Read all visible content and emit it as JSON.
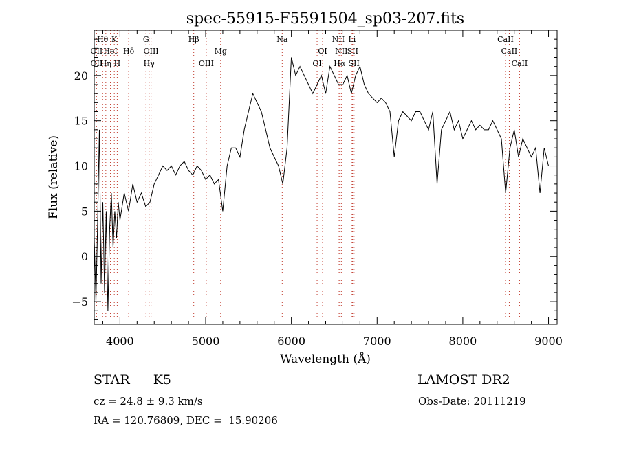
{
  "chart_data": {
    "type": "line",
    "title": "spec-55915-F5591504_sp03-207.fits",
    "xlabel": "Wavelength (Å)",
    "ylabel": "Flux (relative)",
    "xlim": [
      3700,
      9100
    ],
    "ylim": [
      -7.5,
      25
    ],
    "x_ticks": [
      4000,
      5000,
      6000,
      7000,
      8000,
      9000
    ],
    "y_ticks": [
      -5,
      0,
      5,
      10,
      15,
      20
    ],
    "grid": false,
    "series": [
      {
        "x": [
          3700,
          3720,
          3740,
          3760,
          3780,
          3800,
          3820,
          3840,
          3860,
          3880,
          3900,
          3920,
          3940,
          3960,
          3980,
          4000,
          4050,
          4100,
          4150,
          4200,
          4250,
          4300,
          4350,
          4400,
          4450,
          4500,
          4550,
          4600,
          4650,
          4700,
          4750,
          4800,
          4850,
          4900,
          4950,
          5000,
          5050,
          5100,
          5150,
          5200,
          5250,
          5300,
          5350,
          5400,
          5450,
          5500,
          5550,
          5600,
          5650,
          5700,
          5750,
          5800,
          5850,
          5900,
          5950,
          6000,
          6050,
          6100,
          6150,
          6200,
          6250,
          6300,
          6350,
          6400,
          6450,
          6500,
          6550,
          6600,
          6650,
          6700,
          6750,
          6800,
          6850,
          6900,
          6950,
          7000,
          7050,
          7100,
          7150,
          7200,
          7250,
          7300,
          7350,
          7400,
          7450,
          7500,
          7550,
          7600,
          7650,
          7700,
          7750,
          7800,
          7850,
          7900,
          7950,
          8000,
          8050,
          8100,
          8150,
          8200,
          8250,
          8300,
          8350,
          8400,
          8450,
          8500,
          8550,
          8600,
          8650,
          8700,
          8750,
          8800,
          8850,
          8900,
          8950,
          9000
        ],
        "y": [
          2,
          -5,
          4,
          14,
          -3,
          6,
          -4,
          5,
          -6,
          3,
          7,
          1,
          5,
          2,
          6,
          4,
          7,
          5,
          8,
          6,
          7,
          5.5,
          6,
          8,
          9,
          10,
          9.5,
          10,
          9,
          10,
          10.5,
          9.5,
          9,
          10,
          9.5,
          8.5,
          9,
          8,
          8.5,
          5,
          10,
          12,
          12,
          11,
          14,
          16,
          18,
          17,
          16,
          14,
          12,
          11,
          10,
          8,
          12,
          22,
          20,
          21,
          20,
          19,
          18,
          19,
          20,
          18,
          21,
          20,
          19,
          19,
          20,
          18,
          20,
          21,
          19,
          18,
          17.5,
          17,
          17.5,
          17,
          16,
          11,
          15,
          16,
          15.5,
          15,
          16,
          16,
          15,
          14,
          16,
          8,
          14,
          15,
          16,
          14,
          15,
          13,
          14,
          15,
          14,
          14.5,
          14,
          14,
          15,
          14,
          13,
          7,
          12,
          14,
          11,
          13,
          12,
          11,
          12,
          7,
          12,
          10
        ]
      }
    ],
    "spectral_lines": [
      {
        "label": "Hθ",
        "row": 0,
        "x": 3798
      },
      {
        "label": "K",
        "row": 0,
        "x": 3934
      },
      {
        "label": "G",
        "row": 0,
        "x": 4304
      },
      {
        "label": "Hβ",
        "row": 0,
        "x": 4861
      },
      {
        "label": "Na",
        "row": 0,
        "x": 5893
      },
      {
        "label": "NII",
        "row": 0,
        "x": 6548
      },
      {
        "label": "Li",
        "row": 0,
        "x": 6708
      },
      {
        "label": "CaII",
        "row": 0,
        "x": 8498
      },
      {
        "label": "OII",
        "row": 1,
        "x": 3727
      },
      {
        "label": "HeI",
        "row": 1,
        "x": 3889
      },
      {
        "label": "Hδ",
        "row": 1,
        "x": 4102
      },
      {
        "label": "OIII",
        "row": 1,
        "x": 4363
      },
      {
        "label": "Mg",
        "row": 1,
        "x": 5175
      },
      {
        "label": "OI",
        "row": 1,
        "x": 6364
      },
      {
        "label": "NII",
        "row": 1,
        "x": 6583
      },
      {
        "label": "SII",
        "row": 1,
        "x": 6716
      },
      {
        "label": "CaII",
        "row": 1,
        "x": 8542
      },
      {
        "label": "OII",
        "row": 2,
        "x": 3727
      },
      {
        "label": "Hη",
        "row": 2,
        "x": 3835
      },
      {
        "label": "H",
        "row": 2,
        "x": 3968
      },
      {
        "label": "Hγ",
        "row": 2,
        "x": 4340
      },
      {
        "label": "OIII",
        "row": 2,
        "x": 5007
      },
      {
        "label": "OI",
        "row": 2,
        "x": 6300
      },
      {
        "label": "Hα",
        "row": 2,
        "x": 6563
      },
      {
        "label": "SII",
        "row": 2,
        "x": 6731
      },
      {
        "label": "CaII",
        "row": 2,
        "x": 8662
      }
    ]
  },
  "info": {
    "class": "STAR",
    "subclass": "K5",
    "survey": "LAMOST DR2",
    "cz": "cz = 24.8 ± 9.3 km/s",
    "obs_date": "Obs-Date: 20111219",
    "coords": "RA = 120.76809, DEC =  15.90206"
  },
  "colors": {
    "line_marker": "#c0392b",
    "spectrum": "#000000"
  }
}
